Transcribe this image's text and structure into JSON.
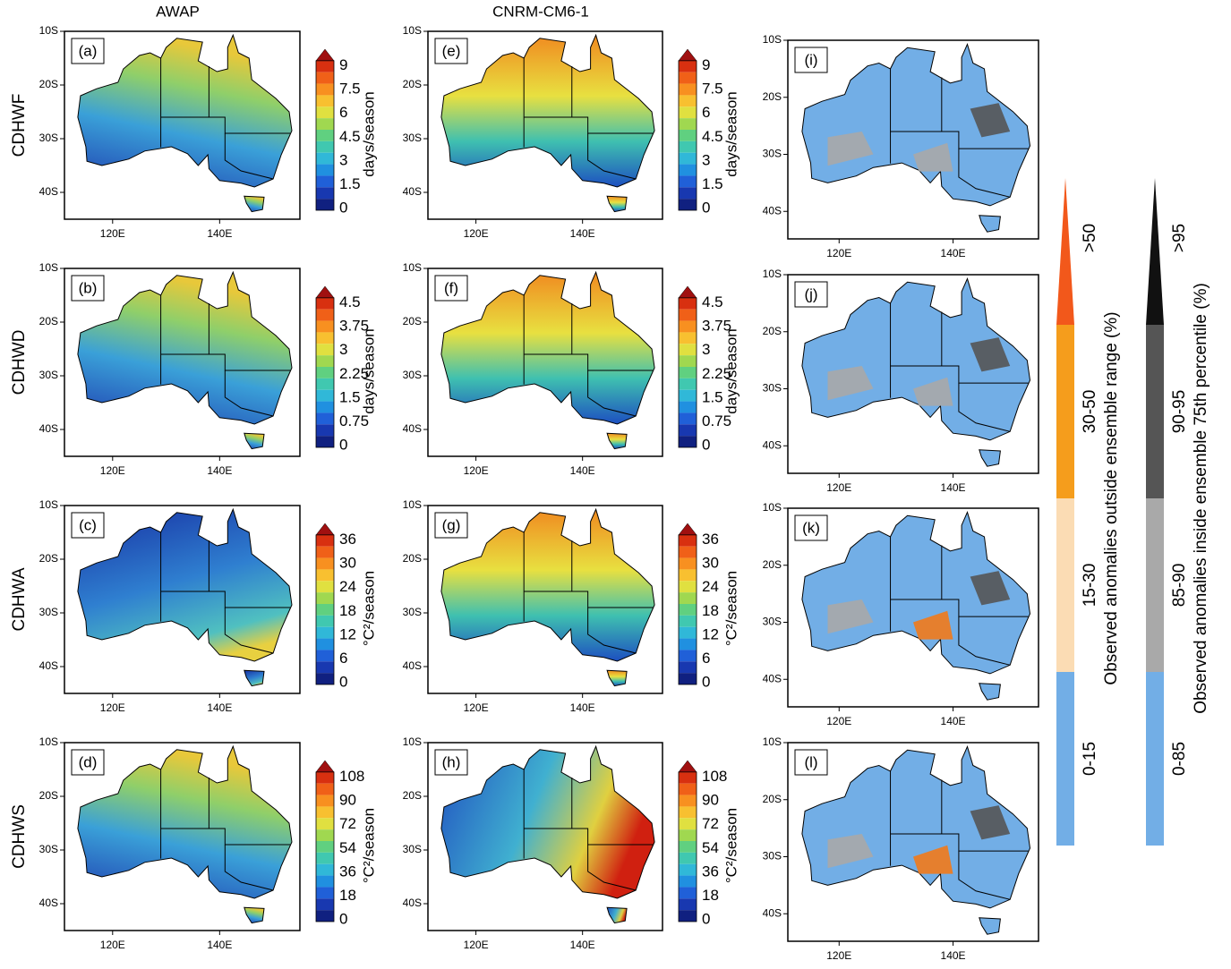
{
  "columns": [
    "AWAP",
    "CNRM-CM6-1"
  ],
  "rows": [
    {
      "label": "CDHWF",
      "unit": "days/season",
      "colorbar_ticks": [
        "0",
        "1.5",
        "3",
        "4.5",
        "6",
        "7.5",
        "9"
      ],
      "panels": [
        "(a)",
        "(e)",
        "(i)"
      ]
    },
    {
      "label": "CDHWD",
      "unit": "days/season",
      "colorbar_ticks": [
        "0",
        "0.75",
        "1.5",
        "2.25",
        "3",
        "3.75",
        "4.5"
      ],
      "panels": [
        "(b)",
        "(f)",
        "(j)"
      ]
    },
    {
      "label": "CDHWA",
      "unit": "°C²/season",
      "colorbar_ticks": [
        "0",
        "6",
        "12",
        "18",
        "24",
        "30",
        "36"
      ],
      "panels": [
        "(c)",
        "(g)",
        "(k)"
      ]
    },
    {
      "label": "CDHWS",
      "unit": "°C²/season",
      "colorbar_ticks": [
        "0",
        "18",
        "36",
        "54",
        "72",
        "90",
        "108"
      ],
      "panels": [
        "(d)",
        "(h)",
        "(l)"
      ]
    }
  ],
  "lat_ticks": [
    "10S",
    "20S",
    "30S",
    "40S"
  ],
  "lon_ticks": [
    "120E",
    "140E"
  ],
  "legends": [
    {
      "title": "Observed anomalies outside ensemble range (%)",
      "classes": [
        "0-15",
        "15-30",
        "30-50",
        ">50"
      ]
    },
    {
      "title": "Observed anomalies inside ensemble 75th percentile (%)",
      "classes": [
        "0-85",
        "85-90",
        "90-95",
        ">95"
      ]
    }
  ]
}
